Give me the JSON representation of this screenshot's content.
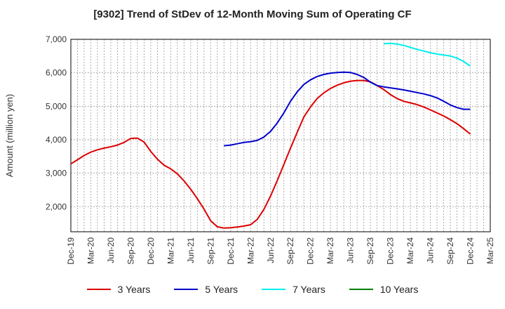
{
  "chart_data": {
    "type": "line",
    "title": "[9302]  Trend of StDev of 12-Month Moving Sum of Operating CF",
    "ylabel": "Amount (million yen)",
    "xlabel": "",
    "ylim": [
      1250,
      7000
    ],
    "yticks": [
      2000,
      3000,
      4000,
      5000,
      6000,
      7000
    ],
    "ytick_labels": [
      "2,000",
      "3,000",
      "4,000",
      "5,000",
      "6,000",
      "7,000"
    ],
    "xticks": [
      "Dec-19",
      "Mar-20",
      "Jun-20",
      "Sep-20",
      "Dec-20",
      "Mar-21",
      "Jun-21",
      "Sep-21",
      "Dec-21",
      "Mar-22",
      "Jun-22",
      "Sep-22",
      "Dec-22",
      "Mar-23",
      "Jun-23",
      "Sep-23",
      "Dec-23",
      "Mar-24",
      "Jun-24",
      "Sep-24",
      "Dec-24",
      "Mar-25"
    ],
    "grid": true,
    "legend_position": "bottom",
    "series": [
      {
        "name": "3 Years",
        "color": "#dd0000",
        "points": [
          [
            "Dec-19",
            3280
          ],
          [
            "Jan-20",
            3400
          ],
          [
            "Feb-20",
            3530
          ],
          [
            "Mar-20",
            3630
          ],
          [
            "Apr-20",
            3700
          ],
          [
            "May-20",
            3750
          ],
          [
            "Jun-20",
            3790
          ],
          [
            "Jul-20",
            3840
          ],
          [
            "Aug-20",
            3920
          ],
          [
            "Sep-20",
            4040
          ],
          [
            "Oct-20",
            4050
          ],
          [
            "Nov-20",
            3930
          ],
          [
            "Dec-20",
            3650
          ],
          [
            "Jan-21",
            3420
          ],
          [
            "Feb-21",
            3240
          ],
          [
            "Mar-21",
            3130
          ],
          [
            "Apr-21",
            2980
          ],
          [
            "May-21",
            2770
          ],
          [
            "Jun-21",
            2520
          ],
          [
            "Jul-21",
            2240
          ],
          [
            "Aug-21",
            1930
          ],
          [
            "Sep-21",
            1580
          ],
          [
            "Oct-21",
            1400
          ],
          [
            "Nov-21",
            1360
          ],
          [
            "Dec-21",
            1370
          ],
          [
            "Jan-22",
            1390
          ],
          [
            "Feb-22",
            1420
          ],
          [
            "Mar-22",
            1460
          ],
          [
            "Apr-22",
            1620
          ],
          [
            "May-22",
            1920
          ],
          [
            "Jun-22",
            2320
          ],
          [
            "Jul-22",
            2780
          ],
          [
            "Aug-22",
            3260
          ],
          [
            "Sep-22",
            3750
          ],
          [
            "Oct-22",
            4220
          ],
          [
            "Nov-22",
            4680
          ],
          [
            "Dec-22",
            4980
          ],
          [
            "Jan-23",
            5230
          ],
          [
            "Feb-23",
            5400
          ],
          [
            "Mar-23",
            5530
          ],
          [
            "Apr-23",
            5630
          ],
          [
            "May-23",
            5700
          ],
          [
            "Jun-23",
            5750
          ],
          [
            "Jul-23",
            5770
          ],
          [
            "Aug-23",
            5770
          ],
          [
            "Sep-23",
            5730
          ],
          [
            "Oct-23",
            5620
          ],
          [
            "Nov-23",
            5500
          ],
          [
            "Dec-23",
            5350
          ],
          [
            "Jan-24",
            5230
          ],
          [
            "Feb-24",
            5150
          ],
          [
            "Mar-24",
            5100
          ],
          [
            "Apr-24",
            5050
          ],
          [
            "May-24",
            4980
          ],
          [
            "Jun-24",
            4890
          ],
          [
            "Jul-24",
            4800
          ],
          [
            "Aug-24",
            4710
          ],
          [
            "Sep-24",
            4600
          ],
          [
            "Oct-24",
            4480
          ],
          [
            "Nov-24",
            4330
          ],
          [
            "Dec-24",
            4170
          ]
        ]
      },
      {
        "name": "5 Years",
        "color": "#0000cc",
        "points": [
          [
            "Nov-21",
            3820
          ],
          [
            "Dec-21",
            3840
          ],
          [
            "Jan-22",
            3880
          ],
          [
            "Feb-22",
            3920
          ],
          [
            "Mar-22",
            3940
          ],
          [
            "Apr-22",
            3980
          ],
          [
            "May-22",
            4080
          ],
          [
            "Jun-22",
            4250
          ],
          [
            "Jul-22",
            4500
          ],
          [
            "Aug-22",
            4800
          ],
          [
            "Sep-22",
            5150
          ],
          [
            "Oct-22",
            5430
          ],
          [
            "Nov-22",
            5650
          ],
          [
            "Dec-22",
            5790
          ],
          [
            "Jan-23",
            5890
          ],
          [
            "Feb-23",
            5950
          ],
          [
            "Mar-23",
            5990
          ],
          [
            "Apr-23",
            6010
          ],
          [
            "May-23",
            6020
          ],
          [
            "Jun-23",
            6010
          ],
          [
            "Jul-23",
            5950
          ],
          [
            "Aug-23",
            5860
          ],
          [
            "Sep-23",
            5720
          ],
          [
            "Oct-23",
            5620
          ],
          [
            "Nov-23",
            5580
          ],
          [
            "Dec-23",
            5550
          ],
          [
            "Jan-24",
            5520
          ],
          [
            "Feb-24",
            5490
          ],
          [
            "Mar-24",
            5450
          ],
          [
            "Apr-24",
            5410
          ],
          [
            "May-24",
            5370
          ],
          [
            "Jun-24",
            5320
          ],
          [
            "Jul-24",
            5250
          ],
          [
            "Aug-24",
            5150
          ],
          [
            "Sep-24",
            5040
          ],
          [
            "Oct-24",
            4960
          ],
          [
            "Nov-24",
            4910
          ],
          [
            "Dec-24",
            4910
          ]
        ]
      },
      {
        "name": "7 Years",
        "color": "#00eeee",
        "points": [
          [
            "Nov-23",
            6870
          ],
          [
            "Dec-23",
            6880
          ],
          [
            "Jan-24",
            6860
          ],
          [
            "Feb-24",
            6820
          ],
          [
            "Mar-24",
            6760
          ],
          [
            "Apr-24",
            6700
          ],
          [
            "May-24",
            6650
          ],
          [
            "Jun-24",
            6600
          ],
          [
            "Jul-24",
            6560
          ],
          [
            "Aug-24",
            6530
          ],
          [
            "Sep-24",
            6500
          ],
          [
            "Oct-24",
            6440
          ],
          [
            "Nov-24",
            6340
          ],
          [
            "Dec-24",
            6200
          ]
        ]
      },
      {
        "name": "10 Years",
        "color": "#008000",
        "points": []
      }
    ]
  }
}
